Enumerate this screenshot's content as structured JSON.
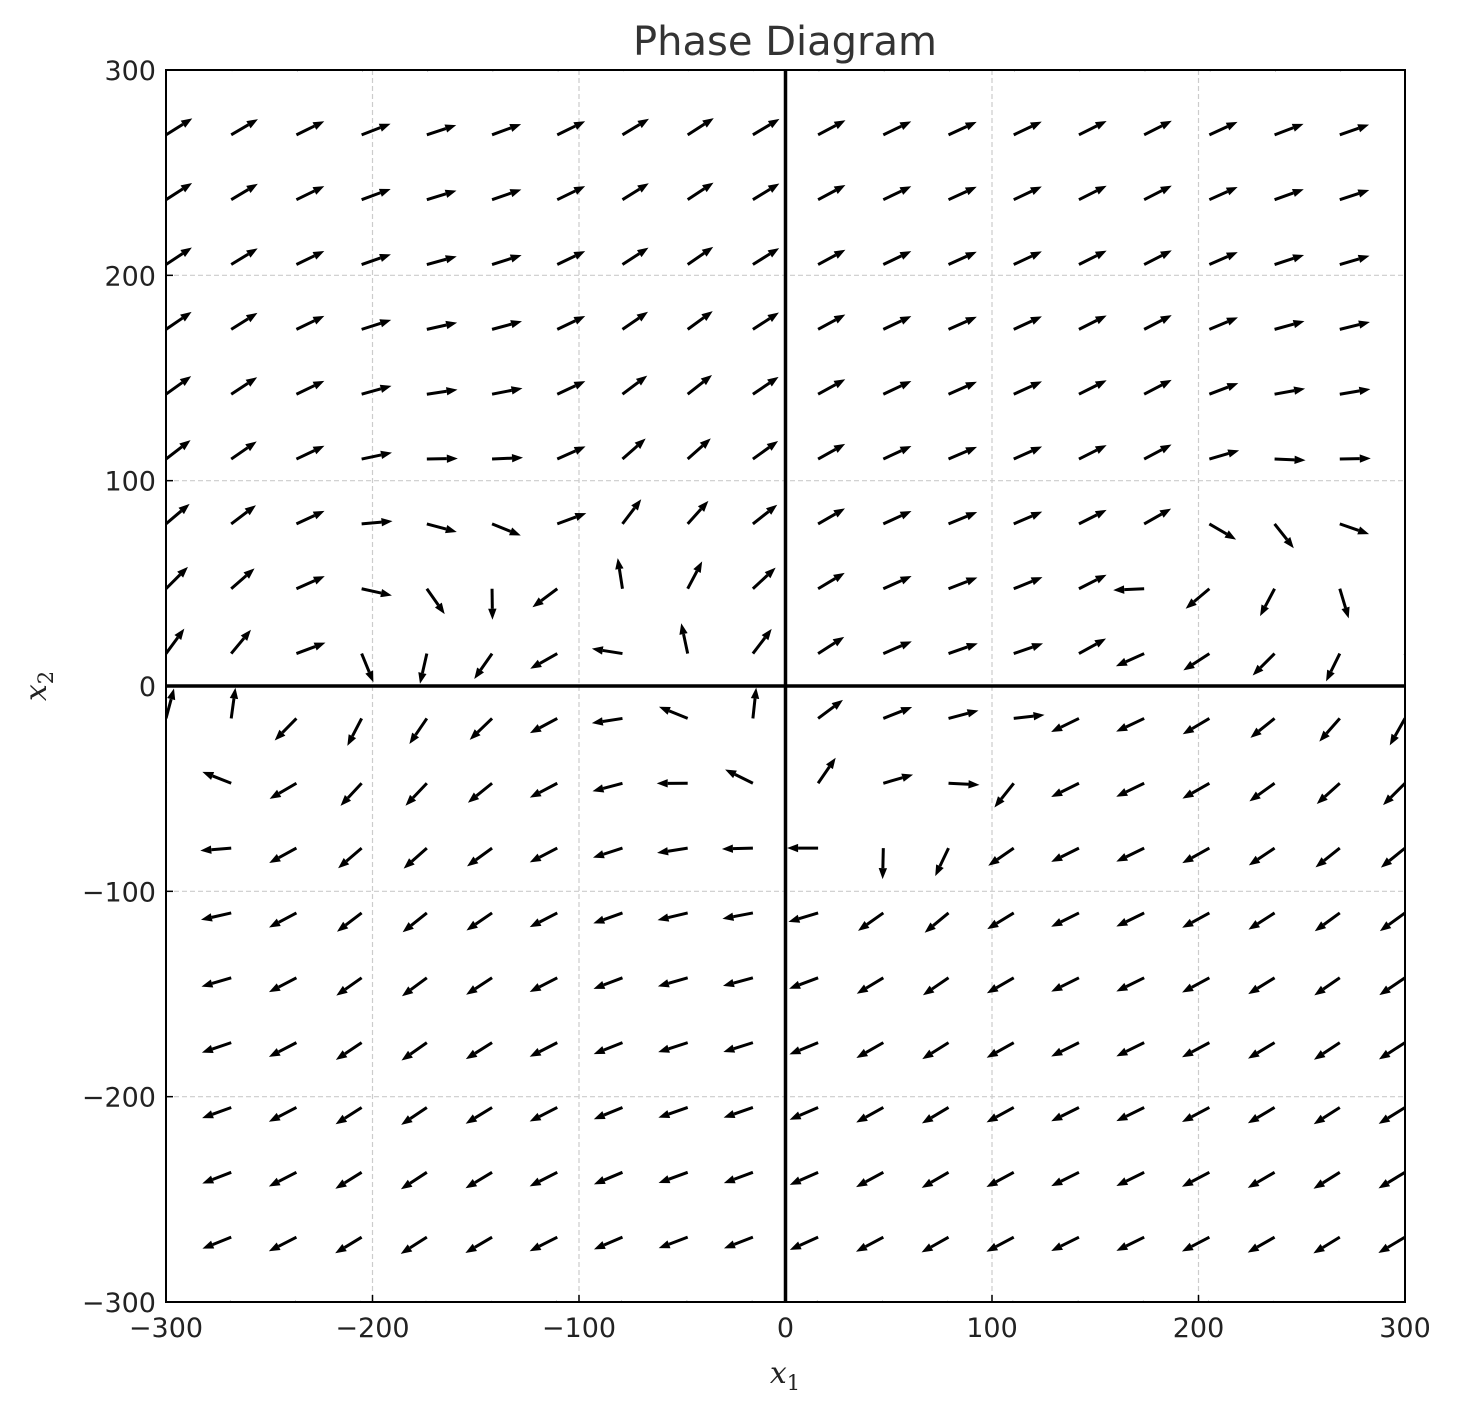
{
  "chart_data": {
    "type": "quiver",
    "title": "Phase Diagram",
    "xlabel": "x",
    "xlabel_sub": "1",
    "ylabel": "x",
    "ylabel_sub": "2",
    "xlim": [
      -300,
      300
    ],
    "ylim": [
      -300,
      300
    ],
    "xticks": [
      -300,
      -200,
      -100,
      0,
      100,
      200,
      300
    ],
    "yticks": [
      -300,
      -200,
      -100,
      0,
      100,
      200,
      300
    ],
    "xtick_labels": [
      "−300",
      "−200",
      "−100",
      "0",
      "100",
      "200",
      "300"
    ],
    "ytick_labels": [
      "−300",
      "−200",
      "−100",
      "0",
      "100",
      "200",
      "300"
    ],
    "grid": true,
    "grid_x_range": [
      -300,
      300
    ],
    "grid_y_range": [
      -300,
      300
    ],
    "grid_points_per_axis": 20,
    "vector_field": "unit direction of (sin(x1/60) + 0.6*sin(x1/40) + cos(x1/60) + x2/40, 0.75*x2/60 - 0.75*sin(x1/40) + cos(x1/60) + sin(x1/50))",
    "colors": {
      "arrow": "#000000",
      "axis_lines": "#000000",
      "grid": "#cccccc",
      "title": "#333333"
    }
  }
}
